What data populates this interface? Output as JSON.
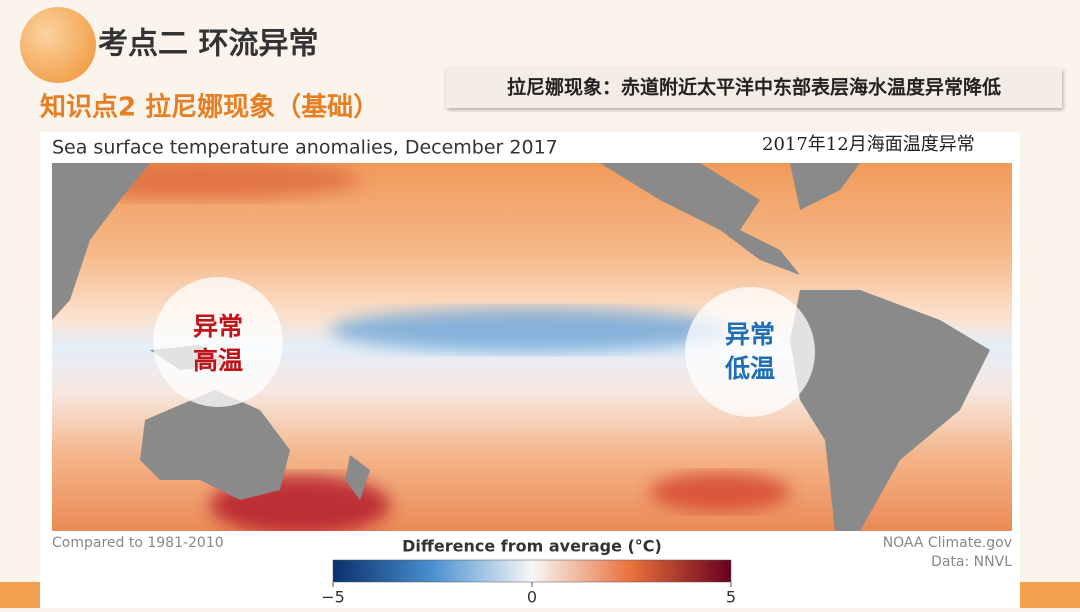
{
  "header": {
    "title": "考点二  环流异常",
    "subtitle": "知识点2 拉尼娜现象（基础）",
    "note": "拉尼娜现象：赤道附近太平洋中东部表层海水温度异常降低"
  },
  "map": {
    "title": "Sea surface temperature anomalies, December 2017",
    "caption_cn": "2017年12月海面温度异常",
    "labels": [
      {
        "line1": "异常",
        "line2": "高温"
      },
      {
        "line1": "异常",
        "line2": "低温"
      }
    ],
    "baseline": "Compared to 1981-2010",
    "colorbar_title": "Difference from average (°C)",
    "source": "NOAA Climate.gov",
    "data_source": "Data: NNVL",
    "colorbar_range": [
      -5,
      5
    ],
    "colorbar_ticks": [
      {
        "value": -5,
        "label": "−5"
      },
      0,
      5
    ]
  }
}
